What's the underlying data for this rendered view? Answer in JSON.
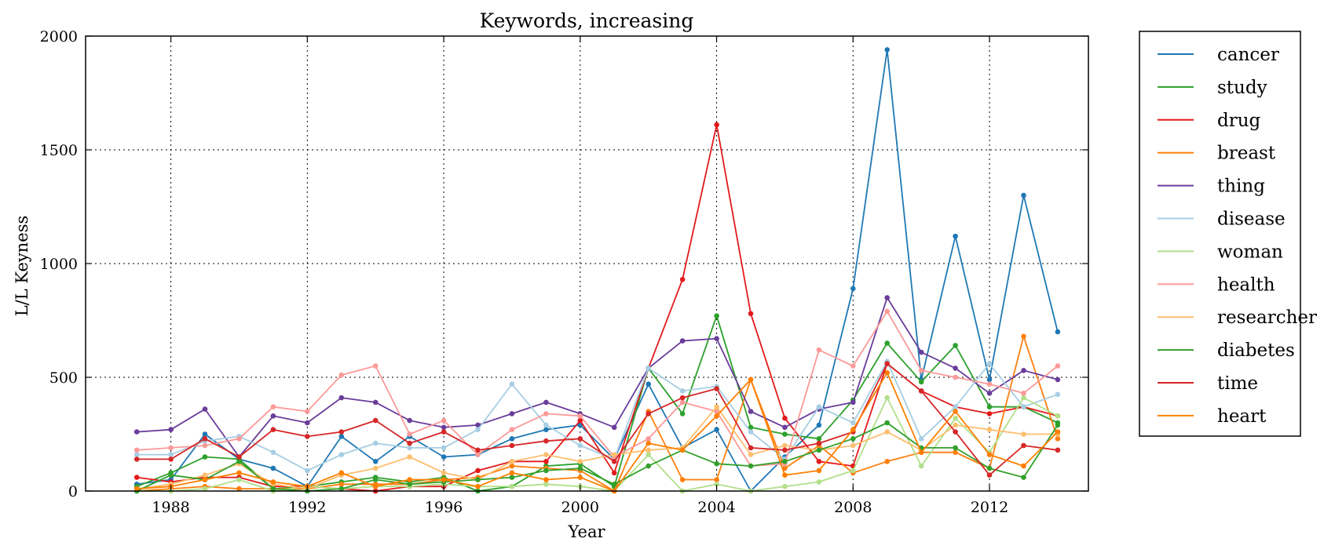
{
  "chart_data": {
    "type": "line",
    "title": "Keywords, increasing",
    "xlabel": "Year",
    "ylabel": "L/L Keyness",
    "xlim": [
      1985.5,
      2014.9
    ],
    "ylim": [
      0,
      2000
    ],
    "xticks": [
      1988,
      1992,
      1996,
      2000,
      2004,
      2008,
      2012
    ],
    "yticks": [
      0,
      500,
      1000,
      1500,
      2000
    ],
    "grid": true,
    "legend_position": "outside-right",
    "x": [
      1987,
      1988,
      1989,
      1990,
      1991,
      1992,
      1993,
      1994,
      1995,
      1996,
      1997,
      1998,
      1999,
      2000,
      2001,
      2002,
      2003,
      2004,
      2005,
      2006,
      2007,
      2008,
      2009,
      2010,
      2011,
      2012,
      2013,
      2014
    ],
    "series": [
      {
        "name": "cancer",
        "color": "#1f78b4",
        "values": [
          30,
          50,
          250,
          140,
          100,
          20,
          240,
          130,
          240,
          150,
          160,
          230,
          270,
          290,
          140,
          470,
          190,
          270,
          0,
          150,
          290,
          890,
          1940,
          490,
          1120,
          490,
          1300,
          700
        ]
      },
      {
        "name": "study",
        "color": "#2ca02c",
        "values": [
          20,
          80,
          150,
          140,
          10,
          20,
          40,
          60,
          40,
          60,
          0,
          20,
          110,
          120,
          20,
          540,
          340,
          770,
          280,
          250,
          230,
          400,
          650,
          480,
          640,
          370,
          370,
          300
        ]
      },
      {
        "name": "drug",
        "color": "#e31a1c",
        "values": [
          60,
          40,
          60,
          60,
          20,
          20,
          10,
          0,
          20,
          20,
          90,
          130,
          130,
          310,
          80,
          540,
          930,
          1610,
          780,
          320,
          130,
          110,
          560,
          440,
          370,
          340,
          370,
          330
        ]
      },
      {
        "name": "breast",
        "color": "#ff7f0e",
        "values": [
          0,
          10,
          20,
          10,
          10,
          10,
          30,
          30,
          30,
          50,
          60,
          110,
          100,
          90,
          0,
          350,
          50,
          50,
          490,
          100,
          200,
          80,
          130,
          170,
          170,
          100,
          680,
          230
        ]
      },
      {
        "name": "thing",
        "color": "#6a3d9a",
        "values": [
          260,
          270,
          360,
          150,
          330,
          300,
          410,
          390,
          310,
          280,
          290,
          340,
          390,
          340,
          280,
          540,
          660,
          670,
          350,
          280,
          360,
          390,
          850,
          610,
          540,
          430,
          530,
          490
        ]
      },
      {
        "name": "disease",
        "color": "#a6cee3",
        "values": [
          160,
          160,
          220,
          240,
          170,
          90,
          160,
          210,
          190,
          190,
          270,
          470,
          290,
          200,
          140,
          540,
          440,
          460,
          260,
          140,
          370,
          300,
          570,
          230,
          370,
          560,
          370,
          425
        ]
      },
      {
        "name": "woman",
        "color": "#b2df8a",
        "values": [
          0,
          0,
          10,
          50,
          0,
          20,
          10,
          20,
          20,
          30,
          20,
          20,
          30,
          20,
          0,
          160,
          0,
          30,
          0,
          20,
          40,
          90,
          410,
          110,
          320,
          170,
          410,
          330
        ]
      },
      {
        "name": "health",
        "color": "#fb9a99",
        "values": [
          180,
          190,
          200,
          230,
          370,
          350,
          510,
          550,
          250,
          310,
          160,
          270,
          340,
          330,
          150,
          230,
          390,
          350,
          110,
          120,
          620,
          550,
          790,
          530,
          500,
          470,
          430,
          550
        ]
      },
      {
        "name": "researcher",
        "color": "#fdbf6f",
        "values": [
          10,
          30,
          70,
          120,
          30,
          10,
          70,
          100,
          150,
          80,
          50,
          130,
          160,
          130,
          160,
          180,
          190,
          370,
          160,
          200,
          180,
          200,
          260,
          180,
          290,
          270,
          250,
          250
        ]
      },
      {
        "name": "diabetes",
        "color": "#33a02c",
        "values": [
          0,
          70,
          50,
          130,
          10,
          0,
          10,
          50,
          30,
          40,
          50,
          60,
          90,
          100,
          30,
          110,
          180,
          120,
          110,
          130,
          180,
          230,
          300,
          190,
          190,
          100,
          60,
          290
        ]
      },
      {
        "name": "time",
        "color": "#d62728",
        "values": [
          140,
          140,
          230,
          150,
          270,
          240,
          260,
          310,
          210,
          260,
          180,
          200,
          220,
          230,
          130,
          340,
          410,
          450,
          190,
          180,
          210,
          260,
          560,
          440,
          260,
          70,
          200,
          180
        ]
      },
      {
        "name": "heart",
        "color": "#ff7f00",
        "values": [
          10,
          20,
          50,
          80,
          40,
          20,
          80,
          20,
          50,
          50,
          20,
          80,
          50,
          60,
          0,
          210,
          180,
          330,
          490,
          70,
          90,
          270,
          520,
          170,
          350,
          160,
          110,
          260
        ]
      }
    ]
  }
}
